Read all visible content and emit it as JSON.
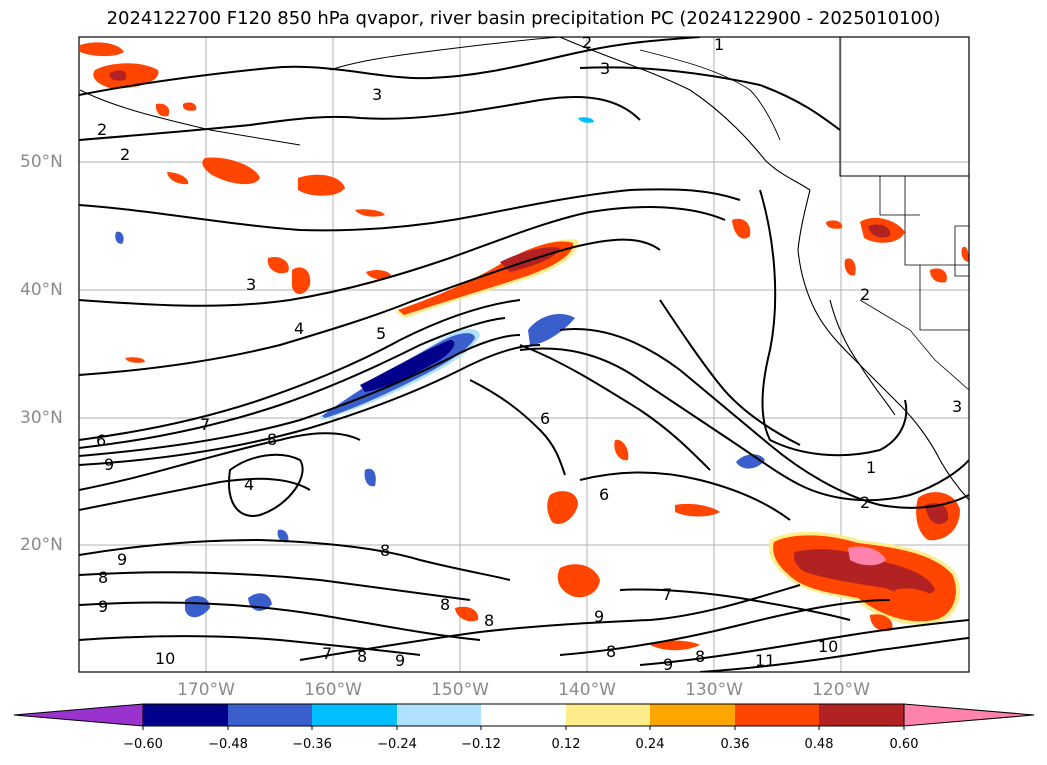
{
  "title": "2024122700 F120 850 hPa qvapor, river basin precipitation PC (2024122900 - 2025010100)",
  "lat_labels": [
    "50°N",
    "40°N",
    "30°N",
    "20°N"
  ],
  "lon_labels": [
    "170°W",
    "160°W",
    "150°W",
    "140°W",
    "130°W",
    "120°W"
  ],
  "colorbar": {
    "ticks": [
      "−0.60",
      "−0.48",
      "−0.36",
      "−0.24",
      "−0.12",
      "0.12",
      "0.24",
      "0.36",
      "0.48",
      "0.60"
    ],
    "colors": [
      "#9a32cd",
      "#00008b",
      "#3a5fcd",
      "#00bfff",
      "#b0e2ff",
      "#ffffff",
      "#ffec8b",
      "#ffa500",
      "#ff4500",
      "#b22222",
      "#ff82ab",
      "#ff82ab"
    ]
  },
  "contour_labels": [
    "1",
    "2",
    "3",
    "3",
    "2",
    "2",
    "3",
    "4",
    "5",
    "6",
    "7",
    "8",
    "9",
    "4",
    "6",
    "6",
    "1",
    "2",
    "8",
    "9",
    "9",
    "8",
    "8",
    "9",
    "10",
    "7",
    "8",
    "9",
    "8",
    "9",
    "10",
    "11",
    "8",
    "8",
    "7",
    "3",
    "2"
  ],
  "fill_colors": {
    "neg_light": "#b0e2ff",
    "neg_mid": "#00bfff",
    "neg_strong": "#3a5fcd",
    "neg_max": "#00008b",
    "pos_light": "#ffec8b",
    "pos_mid": "#ffa500",
    "pos_strong": "#ff4500",
    "pos_high": "#b22222",
    "pos_max": "#ff82ab"
  }
}
